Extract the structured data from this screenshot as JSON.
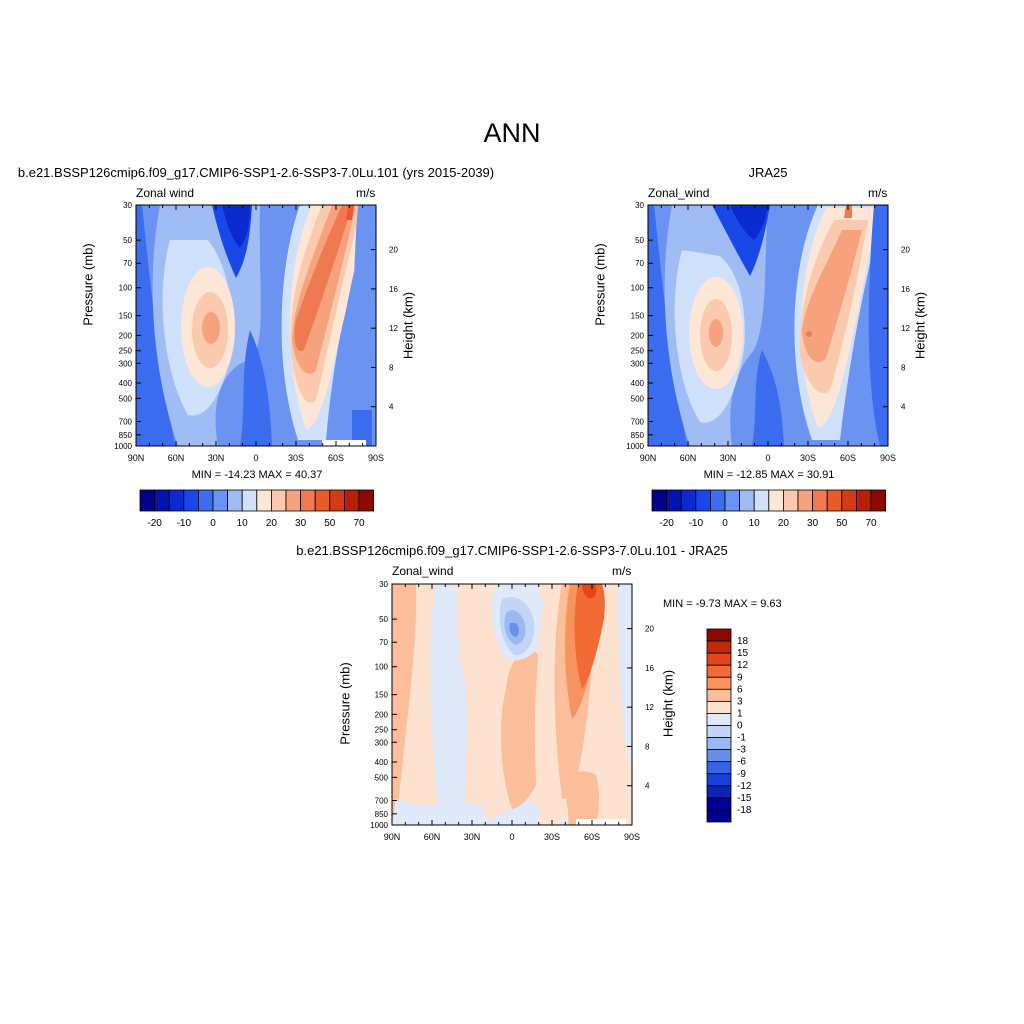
{
  "page": {
    "title": "ANN"
  },
  "chart_data": [
    {
      "type": "heatmap",
      "title": "b.e21.BSSP126cmip6.f09_g17.CMIP6-SSP1-2.6-SSP3-7.0Lu.101 (yrs 2015-2039)",
      "left_label": "Zonal wind",
      "right_label": "m/s",
      "ylabel": "Pressure (mb)",
      "ylabel_right": "Height (km)",
      "x_ticks": [
        "90N",
        "60N",
        "30N",
        "0",
        "30S",
        "60S",
        "90S"
      ],
      "y_ticks": [
        "30",
        "50",
        "70",
        "100",
        "150",
        "200",
        "250",
        "300",
        "400",
        "500",
        "700",
        "850",
        "1000"
      ],
      "y_right_ticks": [
        "20",
        "16",
        "12",
        "8",
        "4"
      ],
      "min_max_text": "MIN = -14.23  MAX =  40.37",
      "min": -14.23,
      "max": 40.37,
      "levels_labels": [
        "-20",
        "-10",
        "0",
        "10",
        "20",
        "30",
        "50",
        "70"
      ],
      "jets": [
        {
          "lat": -40,
          "p": 180,
          "value": 40.4
        },
        {
          "lat": 35,
          "p": 200,
          "value": 27
        },
        {
          "lat": 20,
          "p": 30,
          "value": -14
        },
        {
          "lat": -10,
          "p": 700,
          "value": -8
        }
      ]
    },
    {
      "type": "heatmap",
      "title": "JRA25",
      "left_label": "Zonal_wind",
      "right_label": "m/s",
      "ylabel": "Pressure (mb)",
      "ylabel_right": "Height (km)",
      "x_ticks": [
        "90N",
        "60N",
        "30N",
        "0",
        "30S",
        "60S",
        "90S"
      ],
      "y_ticks": [
        "30",
        "50",
        "70",
        "100",
        "150",
        "200",
        "250",
        "300",
        "400",
        "500",
        "700",
        "850",
        "1000"
      ],
      "y_right_ticks": [
        "20",
        "16",
        "12",
        "8",
        "4"
      ],
      "min_max_text": "MIN = -12.85  MAX =  30.91",
      "min": -12.85,
      "max": 30.91,
      "levels_labels": [
        "-20",
        "-10",
        "0",
        "10",
        "20",
        "30",
        "50",
        "70"
      ],
      "jets": [
        {
          "lat": -35,
          "p": 200,
          "value": 30.9
        },
        {
          "lat": 35,
          "p": 200,
          "value": 27
        },
        {
          "lat": 15,
          "p": 30,
          "value": -12.9
        },
        {
          "lat": 0,
          "p": 700,
          "value": -7
        }
      ]
    },
    {
      "type": "heatmap",
      "title": "b.e21.BSSP126cmip6.f09_g17.CMIP6-SSP1-2.6-SSP3-7.0Lu.101 - JRA25",
      "left_label": "Zonal_wind",
      "right_label": "m/s",
      "ylabel": "Pressure (mb)",
      "ylabel_right": "Height (km)",
      "x_ticks": [
        "90N",
        "60N",
        "30N",
        "0",
        "30S",
        "60S",
        "90S"
      ],
      "y_ticks": [
        "30",
        "50",
        "70",
        "100",
        "150",
        "200",
        "250",
        "300",
        "400",
        "500",
        "700",
        "850",
        "1000"
      ],
      "y_right_ticks": [
        "20",
        "16",
        "12",
        "8",
        "4"
      ],
      "min_max_text": "MIN =  -9.73  MAX =   9.63",
      "min": -9.73,
      "max": 9.63,
      "levels_labels": [
        "18",
        "15",
        "12",
        "9",
        "6",
        "3",
        "1",
        "0",
        "-1",
        "-3",
        "-6",
        "-9",
        "-12",
        "-15",
        "-18"
      ],
      "features": [
        {
          "lat": -52,
          "p": 40,
          "value": 9.6
        },
        {
          "lat": 0,
          "p": 60,
          "value": -9.7
        },
        {
          "lat": -30,
          "p": 120,
          "value": 3
        }
      ]
    }
  ],
  "colors": {
    "blue_scale": [
      "#00008a",
      "#0015b0",
      "#0b2bd0",
      "#1848e8",
      "#3c6cf0",
      "#6b93f2",
      "#9fbcf5",
      "#cfe0fa"
    ],
    "red_scale": [
      "#fde6d6",
      "#fbc9ad",
      "#f6a27c",
      "#f07a50",
      "#e65a2c",
      "#d63a12",
      "#b81e08",
      "#8a0a00"
    ],
    "diff_scale": [
      "#8a0a00",
      "#c02a0a",
      "#e4461a",
      "#f26a36",
      "#f7935f",
      "#fbbd9a",
      "#fde3cf",
      "#dfe9fa",
      "#c2d5f6",
      "#99b9f1",
      "#6890eb",
      "#3564e6",
      "#1840d8",
      "#0c25b6",
      "#000090"
    ]
  }
}
